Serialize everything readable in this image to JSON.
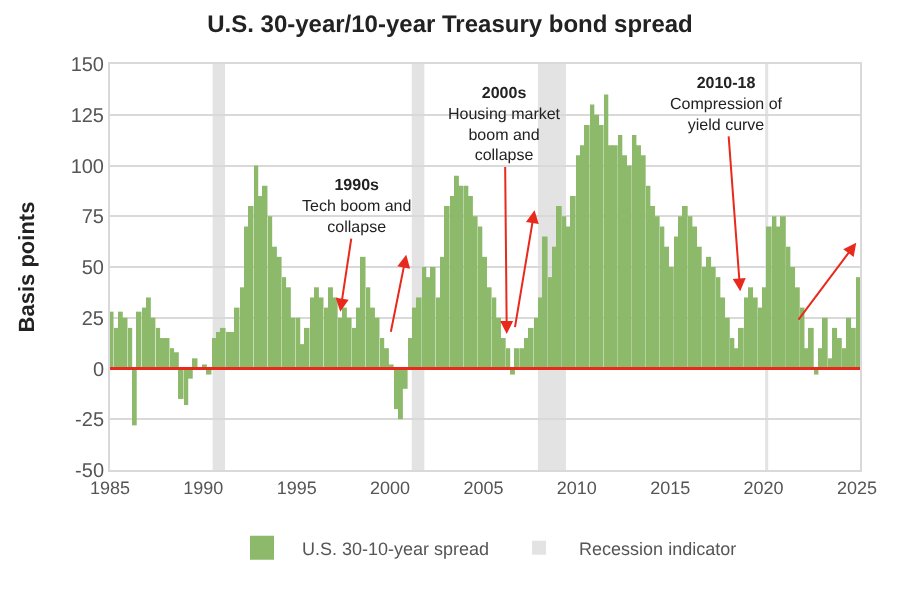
{
  "chart_data": {
    "type": "bar",
    "title": "U.S. 30-year/10-year Treasury bond spread",
    "ylabel": "Basis points",
    "x": [
      "1985-02",
      "1985-05",
      "1985-08",
      "1985-11",
      "1986-02",
      "1986-05",
      "1986-08",
      "1986-11",
      "1987-02",
      "1987-05",
      "1987-08",
      "1987-11",
      "1988-02",
      "1988-05",
      "1988-08",
      "1988-11",
      "1989-02",
      "1989-05",
      "1989-08",
      "1989-11",
      "1990-02",
      "1990-05",
      "1990-08",
      "1990-11",
      "1991-02",
      "1991-05",
      "1991-08",
      "1991-11",
      "1992-02",
      "1992-05",
      "1992-08",
      "1992-11",
      "1993-02",
      "1993-05",
      "1993-08",
      "1993-11",
      "1994-02",
      "1994-05",
      "1994-08",
      "1994-11",
      "1995-02",
      "1995-05",
      "1995-08",
      "1995-11",
      "1996-02",
      "1996-05",
      "1996-08",
      "1996-11",
      "1997-02",
      "1997-05",
      "1997-08",
      "1997-11",
      "1998-02",
      "1998-05",
      "1998-08",
      "1998-11",
      "1999-02",
      "1999-05",
      "1999-08",
      "1999-11",
      "2000-02",
      "2000-05",
      "2000-08",
      "2000-11",
      "2001-02",
      "2001-05",
      "2001-08",
      "2001-11",
      "2002-02",
      "2002-05",
      "2002-08",
      "2002-11",
      "2003-02",
      "2003-05",
      "2003-08",
      "2003-11",
      "2004-02",
      "2004-05",
      "2004-08",
      "2004-11",
      "2005-02",
      "2005-05",
      "2005-08",
      "2005-11",
      "2006-02",
      "2006-05",
      "2006-08",
      "2006-11",
      "2007-02",
      "2007-05",
      "2007-08",
      "2007-11",
      "2008-02",
      "2008-05",
      "2008-08",
      "2008-11",
      "2009-02",
      "2009-05",
      "2009-08",
      "2009-11",
      "2010-02",
      "2010-05",
      "2010-08",
      "2010-11",
      "2011-02",
      "2011-05",
      "2011-08",
      "2011-11",
      "2012-02",
      "2012-05",
      "2012-08",
      "2012-11",
      "2013-02",
      "2013-05",
      "2013-08",
      "2013-11",
      "2014-02",
      "2014-05",
      "2014-08",
      "2014-11",
      "2015-02",
      "2015-05",
      "2015-08",
      "2015-11",
      "2016-02",
      "2016-05",
      "2016-08",
      "2016-11",
      "2017-02",
      "2017-05",
      "2017-08",
      "2017-11",
      "2018-02",
      "2018-05",
      "2018-08",
      "2018-11",
      "2019-02",
      "2019-05",
      "2019-08",
      "2019-11",
      "2020-02",
      "2020-05",
      "2020-08",
      "2020-11",
      "2021-02",
      "2021-05",
      "2021-08",
      "2021-11",
      "2022-02",
      "2022-05",
      "2022-08",
      "2022-11",
      "2023-02",
      "2023-05",
      "2023-08",
      "2023-11",
      "2024-02",
      "2024-05",
      "2024-08",
      "2024-11",
      "2025-02"
    ],
    "series": [
      {
        "name": "U.S. 30-10-year spread",
        "color": "#8dba6a",
        "values": [
          28,
          20,
          28,
          25,
          20,
          -28,
          28,
          30,
          35,
          25,
          20,
          15,
          15,
          10,
          8,
          -15,
          -18,
          -5,
          5,
          0,
          2,
          -3,
          15,
          18,
          20,
          18,
          18,
          30,
          40,
          70,
          80,
          100,
          85,
          90,
          75,
          60,
          55,
          45,
          40,
          25,
          25,
          12,
          20,
          35,
          40,
          35,
          30,
          40,
          35,
          25,
          30,
          25,
          20,
          30,
          55,
          40,
          30,
          25,
          15,
          10,
          2,
          -20,
          -25,
          -10,
          15,
          30,
          35,
          50,
          45,
          50,
          35,
          55,
          80,
          85,
          95,
          90,
          90,
          85,
          75,
          70,
          55,
          40,
          35,
          25,
          15,
          10,
          -3,
          10,
          10,
          15,
          20,
          25,
          35,
          65,
          45,
          60,
          80,
          75,
          70,
          85,
          105,
          110,
          120,
          130,
          125,
          120,
          135,
          110,
          110,
          115,
          105,
          100,
          115,
          110,
          105,
          90,
          80,
          75,
          70,
          60,
          50,
          65,
          75,
          80,
          75,
          70,
          60,
          50,
          55,
          50,
          45,
          35,
          25,
          15,
          10,
          20,
          35,
          40,
          35,
          30,
          40,
          70,
          75,
          70,
          75,
          60,
          50,
          40,
          30,
          10,
          20,
          -3,
          10,
          25,
          5,
          20,
          15,
          10,
          25,
          20,
          45
        ]
      }
    ],
    "xlim": [
      "1985-01",
      "2025-03"
    ],
    "xticks": [
      "1985",
      "1990",
      "1995",
      "2000",
      "2005",
      "2010",
      "2015",
      "2020",
      "2025"
    ],
    "ylim": [
      -50,
      150
    ],
    "yticks": [
      -50,
      -25,
      0,
      25,
      50,
      75,
      100,
      125,
      150
    ],
    "grid": "y",
    "legend": "bottom",
    "ref_lines": [
      {
        "axis": "y",
        "value": 0,
        "color": "#e8291c"
      }
    ],
    "bands": [
      {
        "axis": "x",
        "from": "1990-07",
        "to": "1991-03",
        "color": "#e3e3e3",
        "label": "Recession indicator"
      },
      {
        "axis": "x",
        "from": "2001-03",
        "to": "2001-11",
        "color": "#e3e3e3"
      },
      {
        "axis": "x",
        "from": "2007-12",
        "to": "2009-06",
        "color": "#e3e3e3"
      },
      {
        "axis": "x",
        "from": "2020-02",
        "to": "2020-04",
        "color": "#e3e3e3"
      }
    ],
    "annotations": [
      {
        "text": "1990s\nTech boom and\ncollapse",
        "x": "1997-05",
        "y": 28
      },
      {
        "text": "2000s\nHousing market\nboom and\ncollapse",
        "x": "2006-04",
        "y": 17
      },
      {
        "text": "2010-18\nCompression of\nyield curve",
        "x": "2018-10",
        "y": 38
      }
    ]
  }
}
